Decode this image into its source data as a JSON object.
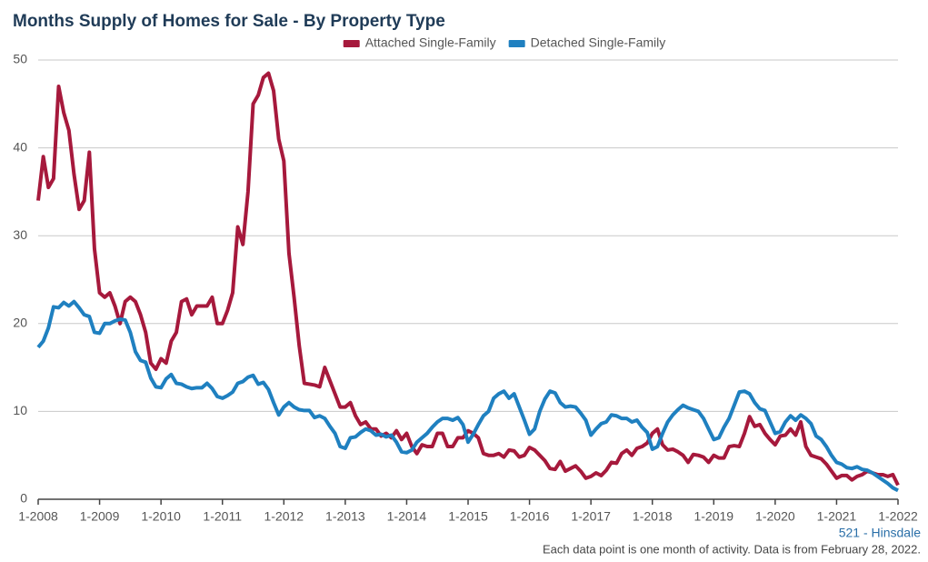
{
  "chart_data": {
    "type": "line",
    "title": "Months Supply of Homes for Sale - By Property Type",
    "footer_location": "521 - Hinsdale",
    "footer_note": "Each data point is one month of activity. Data is from February 28, 2022.",
    "categories": [
      "1-2008",
      null,
      null,
      null,
      null,
      null,
      null,
      null,
      null,
      null,
      null,
      null,
      "1-2009",
      null,
      null,
      null,
      null,
      null,
      null,
      null,
      null,
      null,
      null,
      null,
      "1-2010",
      null,
      null,
      null,
      null,
      null,
      null,
      null,
      null,
      null,
      null,
      null,
      "1-2011",
      null,
      null,
      null,
      null,
      null,
      null,
      null,
      null,
      null,
      null,
      null,
      "1-2012",
      null,
      null,
      null,
      null,
      null,
      null,
      null,
      null,
      null,
      null,
      null,
      "1-2013",
      null,
      null,
      null,
      null,
      null,
      null,
      null,
      null,
      null,
      null,
      null,
      "1-2014",
      null,
      null,
      null,
      null,
      null,
      null,
      null,
      null,
      null,
      null,
      null,
      "1-2015",
      null,
      null,
      null,
      null,
      null,
      null,
      null,
      null,
      null,
      null,
      null,
      "1-2016",
      null,
      null,
      null,
      null,
      null,
      null,
      null,
      null,
      null,
      null,
      null,
      "1-2017",
      null,
      null,
      null,
      null,
      null,
      null,
      null,
      null,
      null,
      null,
      null,
      "1-2018",
      null,
      null,
      null,
      null,
      null,
      null,
      null,
      null,
      null,
      null,
      null,
      "1-2019",
      null,
      null,
      null,
      null,
      null,
      null,
      null,
      null,
      null,
      null,
      null,
      "1-2020",
      null,
      null,
      null,
      null,
      null,
      null,
      null,
      null,
      null,
      null,
      null,
      "1-2021",
      null,
      null,
      null,
      null,
      null,
      null,
      null,
      null,
      null,
      null,
      null,
      "1-2022"
    ],
    "series": [
      {
        "name": "Attached Single-Family",
        "color": "#a6193c",
        "values": [
          34,
          39,
          35.5,
          36.5,
          47,
          44,
          42,
          37,
          33,
          34,
          39.5,
          28.5,
          23.5,
          23,
          23.5,
          22,
          20,
          22.5,
          23,
          22.5,
          21,
          19,
          15.5,
          14.8,
          16,
          15.5,
          18,
          19,
          22.5,
          22.8,
          21,
          22,
          22,
          22,
          23,
          20,
          20,
          21.5,
          23.5,
          31,
          29,
          35,
          45,
          46,
          48,
          48.5,
          46.5,
          41,
          38.5,
          28,
          23,
          17.5,
          13.2,
          13.1,
          13,
          12.8,
          15,
          13.5,
          12,
          10.5,
          10.5,
          11,
          9.5,
          8.5,
          8.8,
          8,
          8,
          7.2,
          7.5,
          7,
          7.8,
          6.8,
          7.5,
          6,
          5.2,
          6.2,
          6,
          6,
          7.5,
          7.5,
          6,
          6,
          7,
          7,
          7.8,
          7.5,
          7,
          5.2,
          5,
          5,
          5.2,
          4.8,
          5.6,
          5.5,
          4.8,
          5,
          5.9,
          5.6,
          5,
          4.4,
          3.5,
          3.4,
          4.3,
          3.2,
          3.5,
          3.8,
          3.2,
          2.4,
          2.6,
          3,
          2.7,
          3.3,
          4.2,
          4.1,
          5.2,
          5.6,
          5,
          5.8,
          6,
          6.4,
          7.5,
          8,
          6.2,
          5.6,
          5.7,
          5.4,
          5,
          4.2,
          5.1,
          5,
          4.8,
          4.2,
          5,
          4.7,
          4.7,
          6,
          6.1,
          6,
          7.5,
          9.4,
          8.3,
          8.5,
          7.5,
          6.8,
          6.2,
          7.2,
          7.3,
          8,
          7.3,
          8.8,
          6,
          5,
          4.8,
          4.6,
          4,
          3.2,
          2.4,
          2.7,
          2.7,
          2.2,
          2.6,
          2.8,
          3.2,
          3,
          2.8,
          2.8,
          2.6,
          2.8,
          1.6
        ]
      },
      {
        "name": "Detached Single-Family",
        "color": "#1f80c0",
        "values": [
          17.3,
          18,
          19.5,
          21.9,
          21.8,
          22.4,
          22,
          22.5,
          21.8,
          21,
          20.8,
          19,
          18.9,
          20,
          20,
          20.3,
          20.5,
          20.4,
          19,
          16.8,
          15.8,
          15.6,
          13.8,
          12.8,
          12.7,
          13.7,
          14.2,
          13.2,
          13.1,
          12.8,
          12.6,
          12.7,
          12.7,
          13.2,
          12.6,
          11.7,
          11.5,
          11.8,
          12.2,
          13.2,
          13.4,
          13.9,
          14.1,
          13.1,
          13.3,
          12.5,
          11,
          9.6,
          10.5,
          11,
          10.5,
          10.2,
          10.1,
          10.1,
          9.3,
          9.5,
          9.2,
          8.3,
          7.5,
          6,
          5.8,
          7,
          7.1,
          7.6,
          8,
          7.8,
          7.3,
          7.4,
          7.1,
          7.3,
          6.5,
          5.4,
          5.3,
          5.6,
          6.5,
          7,
          7.5,
          8.2,
          8.8,
          9.2,
          9.2,
          9,
          9.3,
          8.5,
          6.5,
          7.4,
          8.5,
          9.5,
          10,
          11.5,
          12,
          12.3,
          11.5,
          12,
          10.5,
          9,
          7.4,
          8,
          10,
          11.4,
          12.3,
          12.1,
          11,
          10.5,
          10.6,
          10.5,
          9.8,
          9,
          7.3,
          8,
          8.6,
          8.8,
          9.6,
          9.5,
          9.2,
          9.2,
          8.8,
          9,
          8.2,
          7.6,
          5.7,
          6,
          7.5,
          8.8,
          9.6,
          10.2,
          10.7,
          10.4,
          10.2,
          10,
          9.2,
          8,
          6.8,
          7,
          8.2,
          9.2,
          10.7,
          12.2,
          12.3,
          12,
          11,
          10.3,
          10.1,
          8.8,
          7.5,
          7.7,
          8.8,
          9.5,
          9,
          9.6,
          9.2,
          8.6,
          7.2,
          6.8,
          6,
          5,
          4.2,
          4,
          3.6,
          3.5,
          3.7,
          3.4,
          3.3,
          3,
          2.6,
          2.2,
          1.8,
          1.3,
          1.0
        ]
      }
    ],
    "ylim": [
      0,
      50
    ],
    "yticks": [
      0,
      10,
      20,
      30,
      40,
      50
    ],
    "grid": true,
    "legend": "top"
  }
}
